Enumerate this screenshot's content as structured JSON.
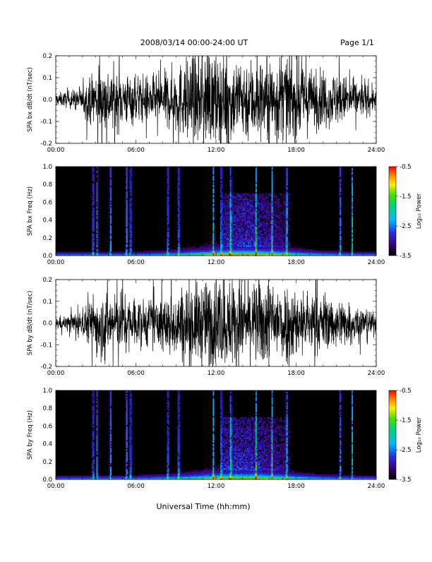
{
  "header": {
    "title": "2008/03/14  00:00-24:00 UT",
    "page_label": "Page 1/1"
  },
  "footer": {
    "xlabel": "Universal Time (hh:mm)"
  },
  "x_ticks": [
    "00:00",
    "06:00",
    "12:00",
    "18:00",
    "24:00"
  ],
  "chart_data": [
    {
      "type": "line",
      "ylabel": "SPA bx dB/dt (nT/sec)",
      "xlim_hours": [
        0,
        24
      ],
      "ylim": [
        -0.2,
        0.2
      ],
      "yticks": [
        -0.2,
        -0.1,
        0.0,
        0.1,
        0.2
      ],
      "ytick_labels": [
        "-0.2",
        "-0.1",
        "0.0",
        "0.1",
        "0.2"
      ],
      "amplitude_envelope": {
        "hours": [
          0,
          1,
          2,
          2.5,
          3,
          4,
          5,
          6,
          7,
          8,
          9,
          10,
          11,
          12,
          13,
          14,
          15,
          16,
          17,
          18,
          19,
          20,
          21,
          22,
          23,
          24
        ],
        "amplitude": [
          0.03,
          0.04,
          0.06,
          0.1,
          0.16,
          0.15,
          0.13,
          0.12,
          0.11,
          0.12,
          0.16,
          0.2,
          0.2,
          0.2,
          0.2,
          0.2,
          0.2,
          0.2,
          0.2,
          0.18,
          0.15,
          0.13,
          0.12,
          0.1,
          0.08,
          0.05
        ]
      },
      "color": "#000000"
    },
    {
      "type": "heatmap",
      "ylabel": "SPA bx Freq (Hz)",
      "xlim_hours": [
        0,
        24
      ],
      "ylim": [
        0.0,
        1.0
      ],
      "yticks": [
        0.0,
        0.2,
        0.4,
        0.6,
        0.8,
        1.0
      ],
      "ytick_labels": [
        "0.0",
        "0.2",
        "0.4",
        "0.6",
        "0.8",
        "1.0"
      ],
      "colorbar": {
        "label": "Log₁₀ Power",
        "range": [
          -3.5,
          -0.5
        ],
        "ticks": [
          -3.5,
          -2.5,
          -1.5,
          -0.5
        ],
        "tick_labels": [
          "-3.5",
          "-2.5",
          "-1.5",
          "-0.5"
        ]
      },
      "bright_streak_hours": [
        2.8,
        3.1,
        4.1,
        5.3,
        5.6,
        8.4,
        9.2,
        11.8,
        12.4,
        13.1,
        15.0,
        16.2,
        17.3,
        21.3,
        22.2
      ],
      "enhanced_region": {
        "hours": [
          12.5,
          17.5
        ],
        "freq_hz": [
          0.1,
          0.7
        ]
      }
    },
    {
      "type": "line",
      "ylabel": "SPA by dB/dt (nT/sec)",
      "xlim_hours": [
        0,
        24
      ],
      "ylim": [
        -0.2,
        0.2
      ],
      "yticks": [
        -0.2,
        -0.1,
        0.0,
        0.1,
        0.2
      ],
      "ytick_labels": [
        "-0.2",
        "-0.1",
        "0.0",
        "0.1",
        "0.2"
      ],
      "amplitude_envelope": {
        "hours": [
          0,
          1,
          2,
          2.5,
          3,
          4,
          5,
          6,
          7,
          8,
          9,
          10,
          11,
          12,
          13,
          14,
          15,
          16,
          17,
          18,
          19,
          20,
          21,
          22,
          23,
          24
        ],
        "amplitude": [
          0.03,
          0.04,
          0.06,
          0.1,
          0.16,
          0.15,
          0.13,
          0.12,
          0.11,
          0.12,
          0.16,
          0.2,
          0.2,
          0.2,
          0.2,
          0.2,
          0.2,
          0.2,
          0.2,
          0.17,
          0.15,
          0.13,
          0.12,
          0.1,
          0.08,
          0.05
        ]
      },
      "color": "#000000"
    },
    {
      "type": "heatmap",
      "ylabel": "SPA by Freq (Hz)",
      "xlim_hours": [
        0,
        24
      ],
      "ylim": [
        0.0,
        1.0
      ],
      "yticks": [
        0.0,
        0.2,
        0.4,
        0.6,
        0.8,
        1.0
      ],
      "ytick_labels": [
        "0.0",
        "0.2",
        "0.4",
        "0.6",
        "0.8",
        "1.0"
      ],
      "colorbar": {
        "label": "Log₁₀ Power",
        "range": [
          -3.5,
          -0.5
        ],
        "ticks": [
          -3.5,
          -2.5,
          -1.5,
          -0.5
        ],
        "tick_labels": [
          "-3.5",
          "-2.5",
          "-1.5",
          "-0.5"
        ]
      },
      "bright_streak_hours": [
        2.8,
        3.1,
        4.1,
        5.3,
        5.6,
        8.4,
        9.2,
        11.8,
        12.4,
        13.1,
        15.0,
        16.2,
        17.3,
        21.3,
        22.2
      ],
      "enhanced_region": {
        "hours": [
          12.5,
          17.5
        ],
        "freq_hz": [
          0.1,
          0.7
        ]
      }
    }
  ]
}
